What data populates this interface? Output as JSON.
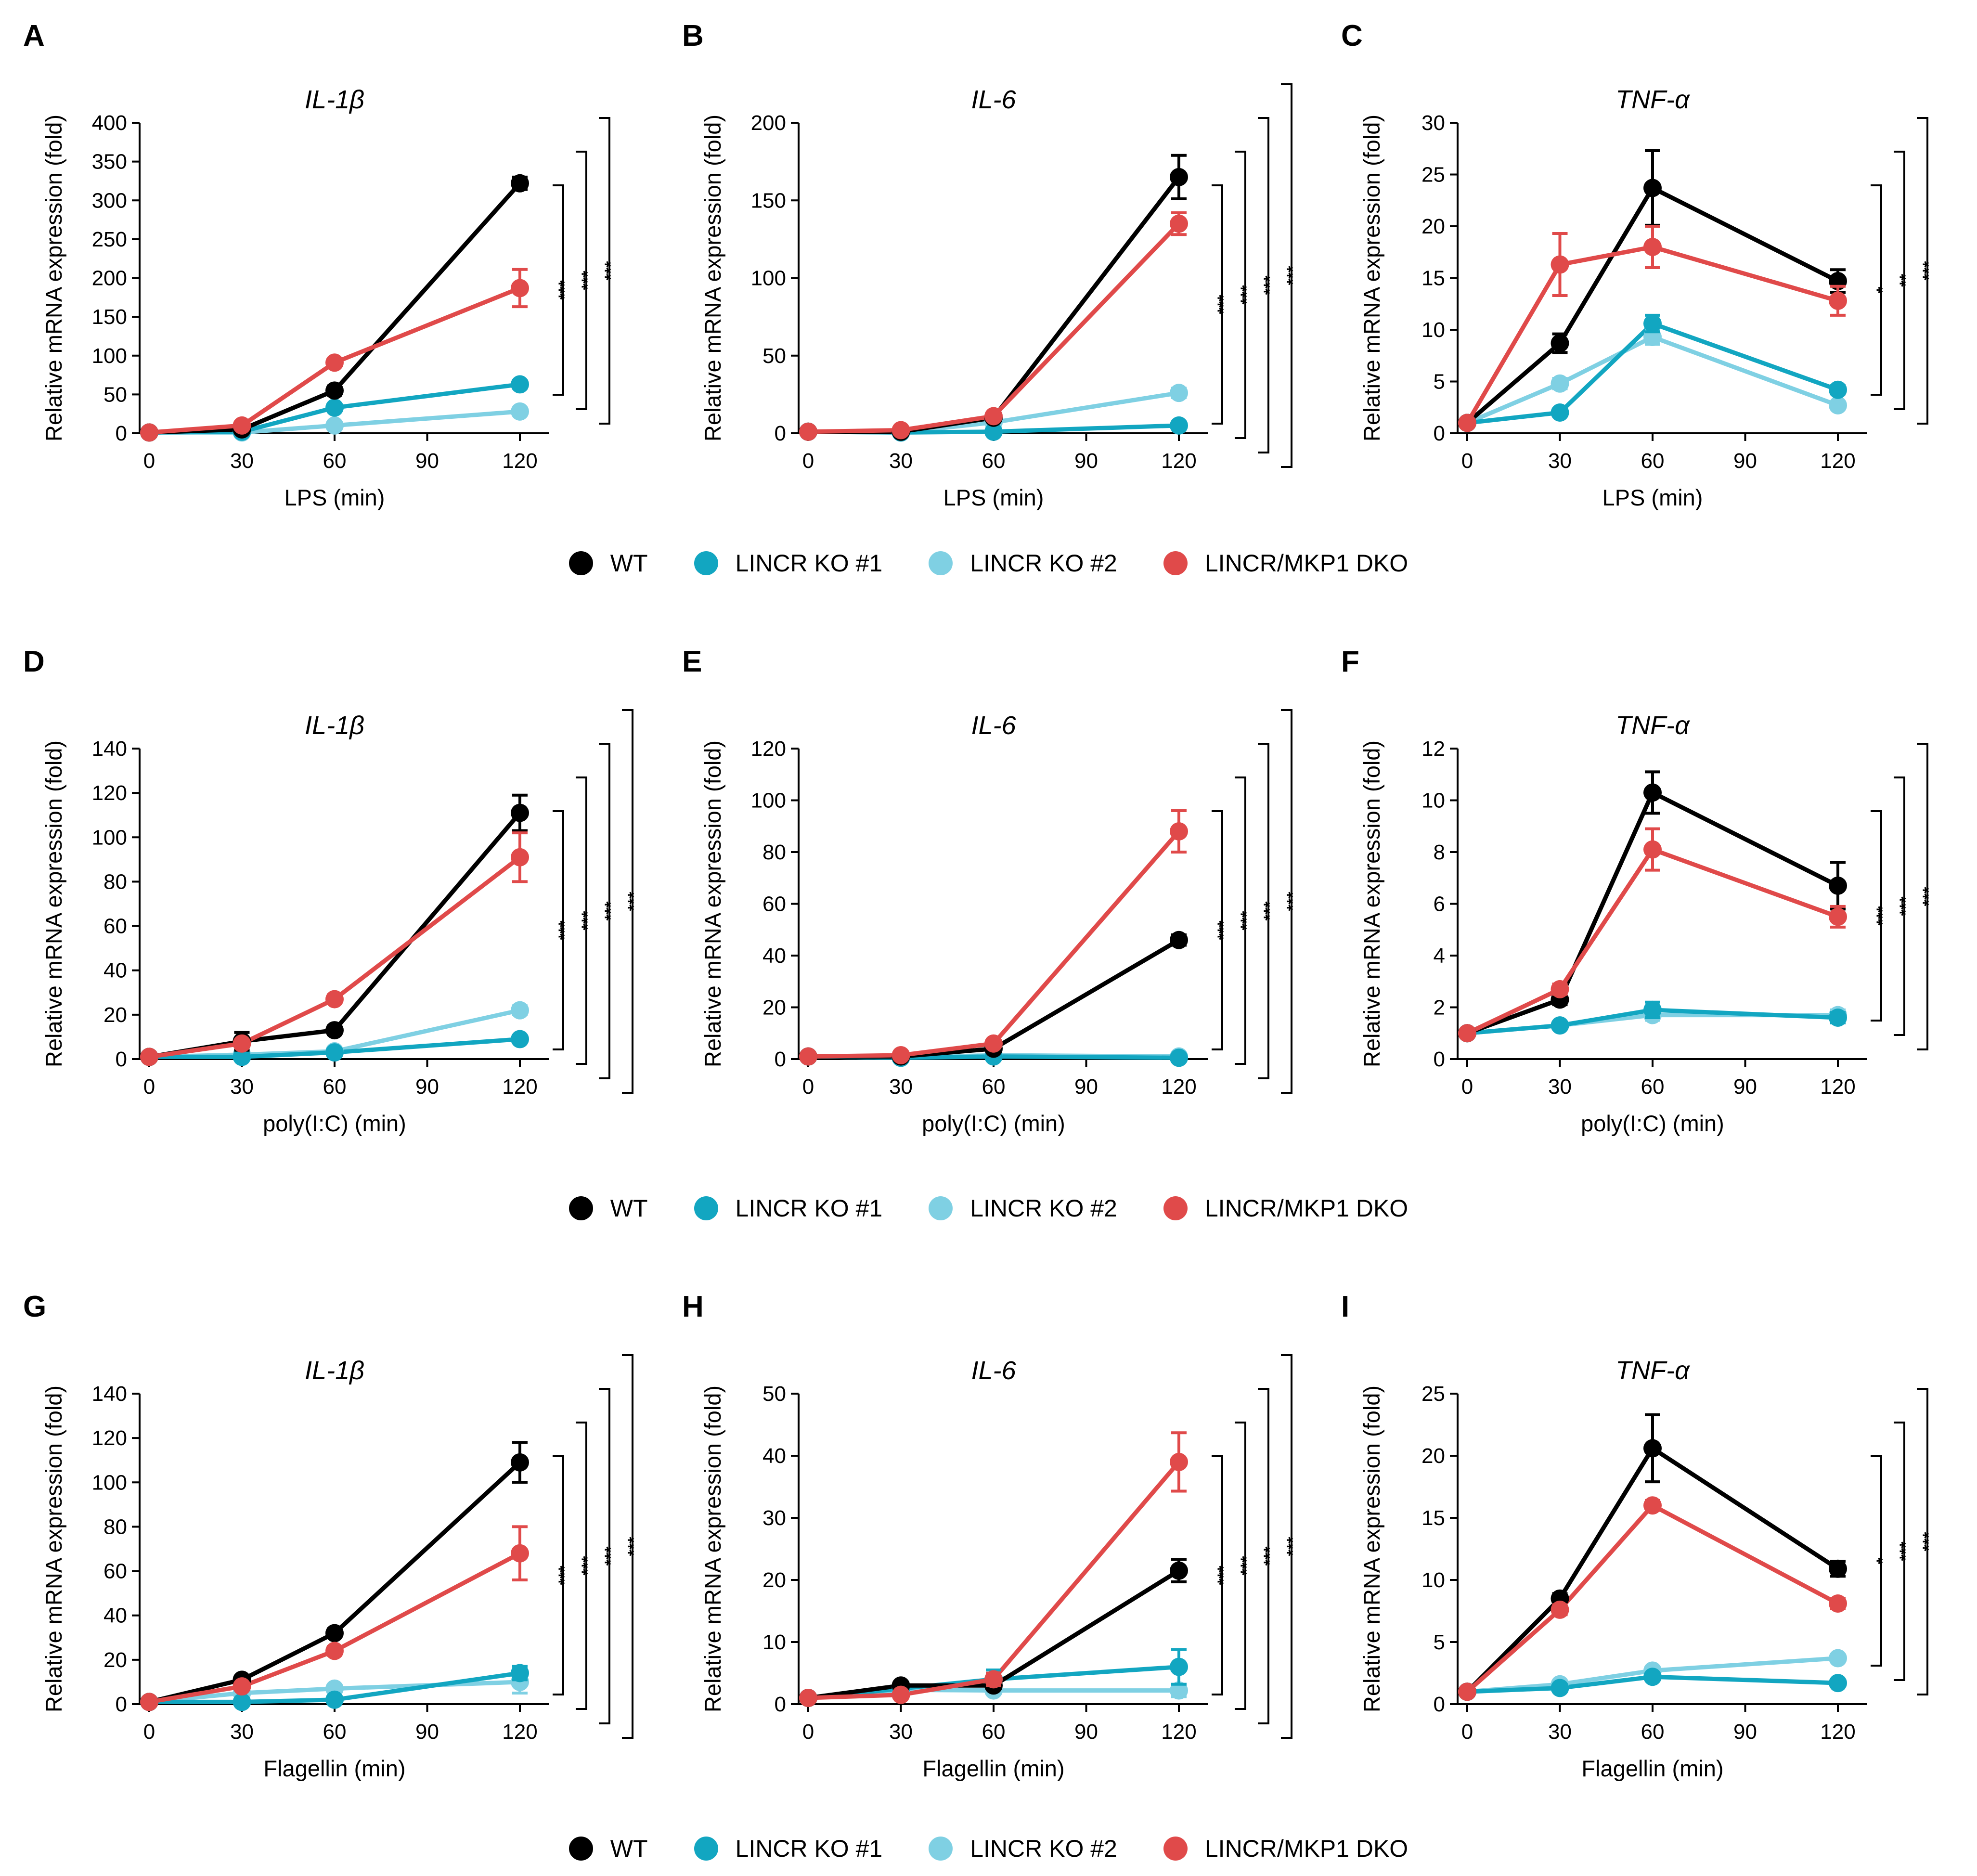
{
  "colors": {
    "WT": "#000000",
    "LINCR KO #1": "#12a6c1",
    "LINCR KO #2": "#7fd0e3",
    "LINCR/MKP1 DKO": "#e04a4a"
  },
  "legend": {
    "items": [
      {
        "label": "WT",
        "color": "#000000"
      },
      {
        "label": "LINCR KO #1",
        "color": "#12a6c1"
      },
      {
        "label": "LINCR KO #2",
        "color": "#7fd0e3"
      },
      {
        "label": "LINCR/MKP1 DKO",
        "color": "#e04a4a"
      }
    ]
  },
  "chart_data": [
    {
      "id": "A",
      "title": "IL-1β",
      "type": "line",
      "xlabel": "LPS (min)",
      "ylabel": "Relative mRNA expression (fold)",
      "x": [
        0,
        30,
        60,
        120
      ],
      "xticks": [
        0,
        30,
        60,
        90,
        120
      ],
      "ylim": [
        0,
        400
      ],
      "yticks": [
        0,
        50,
        100,
        150,
        200,
        250,
        300,
        350,
        400
      ],
      "series": [
        {
          "name": "WT",
          "values": [
            1,
            5,
            55,
            322
          ],
          "errors": [
            0,
            2,
            6,
            8
          ]
        },
        {
          "name": "LINCR KO #1",
          "values": [
            1,
            2,
            33,
            63
          ],
          "errors": [
            0,
            1,
            3,
            5
          ]
        },
        {
          "name": "LINCR KO #2",
          "values": [
            1,
            1,
            10,
            28
          ],
          "errors": [
            0,
            1,
            2,
            3
          ]
        },
        {
          "name": "LINCR/MKP1 DKO",
          "values": [
            1,
            10,
            91,
            187
          ],
          "errors": [
            0,
            3,
            4,
            24
          ]
        }
      ],
      "significance": [
        "***",
        "***",
        "***"
      ]
    },
    {
      "id": "B",
      "title": "IL-6",
      "type": "line",
      "xlabel": "LPS (min)",
      "ylabel": "Relative mRNA expression (fold)",
      "x": [
        0,
        30,
        60,
        120
      ],
      "xticks": [
        0,
        30,
        60,
        90,
        120
      ],
      "ylim": [
        0,
        200
      ],
      "yticks": [
        0,
        50,
        100,
        150,
        200
      ],
      "series": [
        {
          "name": "WT",
          "values": [
            1,
            1,
            10,
            165
          ],
          "errors": [
            0,
            0.5,
            1,
            14
          ]
        },
        {
          "name": "LINCR KO #1",
          "values": [
            1,
            0.5,
            1,
            5
          ],
          "errors": [
            0,
            0.3,
            0.5,
            1
          ]
        },
        {
          "name": "LINCR KO #2",
          "values": [
            1,
            0.5,
            7,
            26
          ],
          "errors": [
            0,
            0.3,
            1,
            3
          ]
        },
        {
          "name": "LINCR/MKP1 DKO",
          "values": [
            1,
            2,
            11,
            135
          ],
          "errors": [
            0,
            0.5,
            1,
            7
          ]
        }
      ],
      "significance": [
        "***",
        "***",
        "***",
        "***"
      ]
    },
    {
      "id": "C",
      "title": "TNF-α",
      "type": "line",
      "xlabel": "LPS (min)",
      "ylabel": "Relative mRNA expression (fold)",
      "x": [
        0,
        30,
        60,
        120
      ],
      "xticks": [
        0,
        30,
        60,
        90,
        120
      ],
      "ylim": [
        0,
        30
      ],
      "yticks": [
        0,
        5,
        10,
        15,
        20,
        25,
        30
      ],
      "series": [
        {
          "name": "WT",
          "values": [
            1,
            8.7,
            23.7,
            14.7
          ],
          "errors": [
            0,
            0.9,
            3.6,
            1.1
          ]
        },
        {
          "name": "LINCR KO #1",
          "values": [
            1,
            2,
            10.6,
            4.2
          ],
          "errors": [
            0,
            0.2,
            0.8,
            0.4
          ]
        },
        {
          "name": "LINCR KO #2",
          "values": [
            1,
            4.8,
            9.3,
            2.7
          ],
          "errors": [
            0,
            0.5,
            0.7,
            0.3
          ]
        },
        {
          "name": "LINCR/MKP1 DKO",
          "values": [
            1,
            16.3,
            18,
            12.8
          ],
          "errors": [
            0,
            3,
            2,
            1.4
          ]
        }
      ],
      "significance": [
        "*",
        "**",
        "***"
      ]
    },
    {
      "id": "D",
      "title": "IL-1β",
      "type": "line",
      "xlabel": "poly(I:C) (min)",
      "ylabel": "Relative mRNA expression (fold)",
      "x": [
        0,
        30,
        60,
        120
      ],
      "xticks": [
        0,
        30,
        60,
        90,
        120
      ],
      "ylim": [
        0,
        140
      ],
      "yticks": [
        0,
        20,
        40,
        60,
        80,
        100,
        120,
        140
      ],
      "series": [
        {
          "name": "WT",
          "values": [
            1,
            8,
            13,
            111
          ],
          "errors": [
            0,
            4,
            2,
            8
          ]
        },
        {
          "name": "LINCR KO #1",
          "values": [
            1,
            1,
            3,
            9
          ],
          "errors": [
            0,
            0.5,
            1,
            1
          ]
        },
        {
          "name": "LINCR KO #2",
          "values": [
            1,
            2,
            3.5,
            22
          ],
          "errors": [
            0,
            0.5,
            1,
            2
          ]
        },
        {
          "name": "LINCR/MKP1 DKO",
          "values": [
            1,
            7,
            27,
            91
          ],
          "errors": [
            0,
            1,
            2,
            11
          ]
        }
      ],
      "significance": [
        "***",
        "***",
        "***",
        "***"
      ]
    },
    {
      "id": "E",
      "title": "IL-6",
      "type": "line",
      "xlabel": "poly(I:C) (min)",
      "ylabel": "Relative mRNA expression (fold)",
      "x": [
        0,
        30,
        60,
        120
      ],
      "xticks": [
        0,
        30,
        60,
        90,
        120
      ],
      "ylim": [
        0,
        120
      ],
      "yticks": [
        0,
        20,
        40,
        60,
        80,
        100,
        120
      ],
      "series": [
        {
          "name": "WT",
          "values": [
            1,
            1,
            4,
            46
          ],
          "errors": [
            0,
            0.3,
            1,
            2
          ]
        },
        {
          "name": "LINCR KO #1",
          "values": [
            1,
            0.5,
            1,
            0.5
          ],
          "errors": [
            0,
            0.2,
            0.3,
            0.2
          ]
        },
        {
          "name": "LINCR KO #2",
          "values": [
            1,
            0.5,
            1.5,
            1
          ],
          "errors": [
            0,
            0.2,
            0.3,
            0.3
          ]
        },
        {
          "name": "LINCR/MKP1 DKO",
          "values": [
            1,
            1.5,
            6,
            88
          ],
          "errors": [
            0,
            0.5,
            1,
            8
          ]
        }
      ],
      "significance": [
        "***",
        "***",
        "***",
        "***"
      ]
    },
    {
      "id": "F",
      "title": "TNF-α",
      "type": "line",
      "xlabel": "poly(I:C) (min)",
      "ylabel": "Relative mRNA expression (fold)",
      "x": [
        0,
        30,
        60,
        120
      ],
      "xticks": [
        0,
        30,
        60,
        90,
        120
      ],
      "ylim": [
        0,
        12
      ],
      "yticks": [
        0,
        2,
        4,
        6,
        8,
        10,
        12
      ],
      "series": [
        {
          "name": "WT",
          "values": [
            1,
            2.3,
            10.3,
            6.7
          ],
          "errors": [
            0,
            0.2,
            0.8,
            0.9
          ]
        },
        {
          "name": "LINCR KO #1",
          "values": [
            1,
            1.3,
            1.9,
            1.6
          ],
          "errors": [
            0,
            0.1,
            0.3,
            0.2
          ]
        },
        {
          "name": "LINCR KO #2",
          "values": [
            1,
            1.3,
            1.7,
            1.7
          ],
          "errors": [
            0,
            0.1,
            0.2,
            0.2
          ]
        },
        {
          "name": "LINCR/MKP1 DKO",
          "values": [
            1,
            2.7,
            8.1,
            5.5
          ],
          "errors": [
            0,
            0.2,
            0.8,
            0.4
          ]
        }
      ],
      "significance": [
        "***",
        "***",
        "***"
      ]
    },
    {
      "id": "G",
      "title": "IL-1β",
      "type": "line",
      "xlabel": "Flagellin (min)",
      "ylabel": "Relative mRNA expression (fold)",
      "x": [
        0,
        30,
        60,
        120
      ],
      "xticks": [
        0,
        30,
        60,
        90,
        120
      ],
      "ylim": [
        0,
        140
      ],
      "yticks": [
        0,
        20,
        40,
        60,
        80,
        100,
        120,
        140
      ],
      "series": [
        {
          "name": "WT",
          "values": [
            1,
            11,
            32,
            109
          ],
          "errors": [
            0,
            1.5,
            2,
            9
          ]
        },
        {
          "name": "LINCR KO #1",
          "values": [
            1,
            1,
            2,
            14
          ],
          "errors": [
            0,
            0.5,
            1,
            3
          ]
        },
        {
          "name": "LINCR KO #2",
          "values": [
            1,
            5,
            7,
            10
          ],
          "errors": [
            0,
            1,
            1,
            5
          ]
        },
        {
          "name": "LINCR/MKP1 DKO",
          "values": [
            1,
            8,
            24,
            68
          ],
          "errors": [
            0,
            1,
            2,
            12
          ]
        }
      ],
      "significance": [
        "***",
        "***",
        "***",
        "***"
      ]
    },
    {
      "id": "H",
      "title": "IL-6",
      "type": "line",
      "xlabel": "Flagellin (min)",
      "ylabel": "Relative mRNA expression (fold)",
      "x": [
        0,
        30,
        60,
        120
      ],
      "xticks": [
        0,
        30,
        60,
        90,
        120
      ],
      "ylim": [
        0,
        50
      ],
      "yticks": [
        0,
        10,
        20,
        30,
        40,
        50
      ],
      "series": [
        {
          "name": "WT",
          "values": [
            1,
            3,
            3,
            21.5
          ],
          "errors": [
            0,
            0.3,
            0.3,
            1.8
          ]
        },
        {
          "name": "LINCR KO #1",
          "values": [
            1,
            2.5,
            4,
            6
          ],
          "errors": [
            0,
            0.3,
            1.5,
            2.8
          ]
        },
        {
          "name": "LINCR KO #2",
          "values": [
            1,
            2.3,
            2.2,
            2.2
          ],
          "errors": [
            0,
            0.3,
            0.3,
            1
          ]
        },
        {
          "name": "LINCR/MKP1 DKO",
          "values": [
            1,
            1.5,
            4,
            39
          ],
          "errors": [
            0,
            0.3,
            1,
            4.7
          ]
        }
      ],
      "significance": [
        "***",
        "***",
        "***",
        "***"
      ]
    },
    {
      "id": "I",
      "title": "TNF-α",
      "type": "line",
      "xlabel": "Flagellin (min)",
      "ylabel": "Relative mRNA expression (fold)",
      "x": [
        0,
        30,
        60,
        120
      ],
      "xticks": [
        0,
        30,
        60,
        90,
        120
      ],
      "ylim": [
        0,
        25
      ],
      "yticks": [
        0,
        5,
        10,
        15,
        20,
        25
      ],
      "series": [
        {
          "name": "WT",
          "values": [
            1,
            8.5,
            20.6,
            10.9
          ],
          "errors": [
            0,
            0.4,
            2.7,
            0.6
          ]
        },
        {
          "name": "LINCR KO #1",
          "values": [
            1,
            1.3,
            2.2,
            1.7
          ],
          "errors": [
            0,
            0.2,
            0.2,
            0.2
          ]
        },
        {
          "name": "LINCR KO #2",
          "values": [
            1,
            1.6,
            2.7,
            3.7
          ],
          "errors": [
            0,
            0.2,
            0.2,
            0.3
          ]
        },
        {
          "name": "LINCR/MKP1 DKO",
          "values": [
            1,
            7.6,
            16,
            8.1
          ],
          "errors": [
            0,
            0.4,
            0.4,
            0.4
          ]
        }
      ],
      "significance": [
        "*",
        "***",
        "***"
      ]
    }
  ]
}
